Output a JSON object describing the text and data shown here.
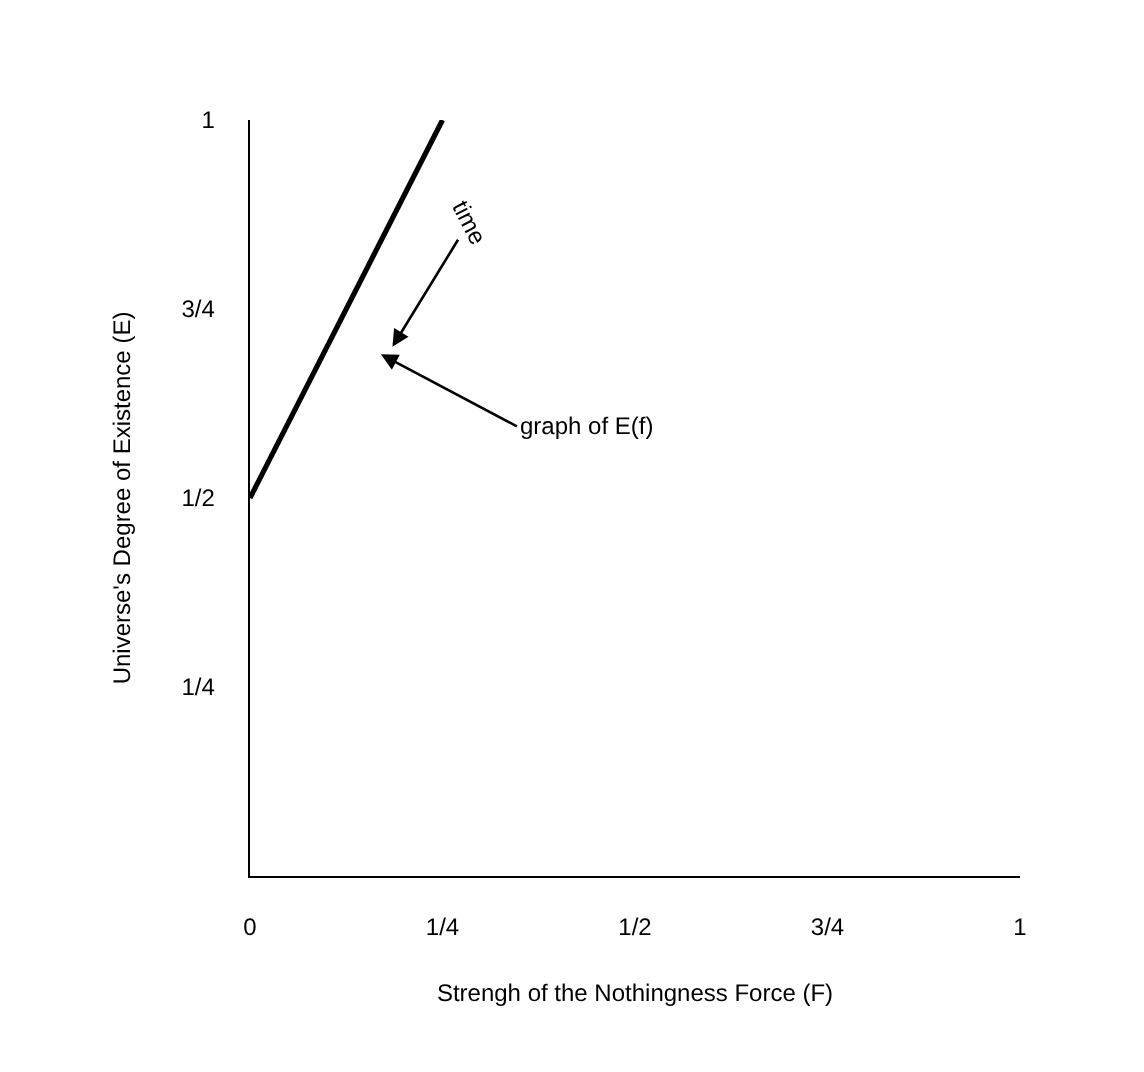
{
  "chart_data": {
    "type": "line",
    "xlabel": "Strengh of the Nothingness Force (F)",
    "ylabel": "Universe's Degree of Existence (E)",
    "x": [
      0,
      0.25
    ],
    "series": [
      {
        "color": "#000000",
        "values": [
          0.5,
          1
        ]
      }
    ],
    "xlim": [
      0,
      1
    ],
    "ylim": [
      0,
      1
    ],
    "xticks": [
      0,
      {
        "value": 0.25,
        "label": "1/4"
      },
      {
        "value": 0.5,
        "label": "1/2"
      },
      {
        "value": 0.75,
        "label": "3/4"
      },
      1
    ],
    "yticks": [
      {
        "value": 0.25,
        "label": "1/4"
      },
      {
        "value": 0.5,
        "label": "1/2"
      },
      {
        "value": 0.75,
        "label": "3/4"
      },
      1
    ],
    "annotations": [
      "time",
      "graph of E(f)"
    ],
    "marker": "none",
    "line_style": "solid"
  }
}
